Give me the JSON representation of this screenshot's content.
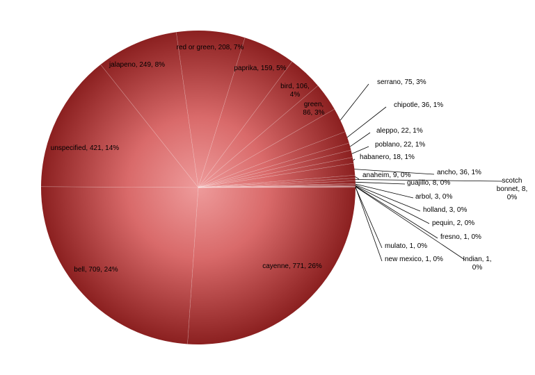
{
  "chart_data": {
    "type": "pie",
    "title": "",
    "series": [
      {
        "values": [
          {
            "label": "cayenne",
            "value": 771,
            "percent": "26%",
            "text": "cayenne, 771, 26%"
          },
          {
            "label": "bell",
            "value": 709,
            "percent": "24%",
            "text": "bell, 709, 24%"
          },
          {
            "label": "unspecified",
            "value": 421,
            "percent": "14%",
            "text": "unspecified, 421, 14%"
          },
          {
            "label": "jalapeno",
            "value": 249,
            "percent": "8%",
            "text": "jalapeno, 249, 8%"
          },
          {
            "label": "red or green",
            "value": 208,
            "percent": "7%",
            "text": "red or green, 208, 7%"
          },
          {
            "label": "paprika",
            "value": 159,
            "percent": "5%",
            "text": "paprika, 159, 5%"
          },
          {
            "label": "bird",
            "value": 106,
            "percent": "4%",
            "text": "bird, 106, 4%"
          },
          {
            "label": "green",
            "value": 86,
            "percent": "3%",
            "text": "green, 86, 3%"
          },
          {
            "label": "serrano",
            "value": 75,
            "percent": "3%",
            "text": "serrano, 75, 3%"
          },
          {
            "label": "chipotle",
            "value": 36,
            "percent": "1%",
            "text": "chipotle, 36, 1%"
          },
          {
            "label": "aleppo",
            "value": 22,
            "percent": "1%",
            "text": "aleppo, 22, 1%"
          },
          {
            "label": "poblano",
            "value": 22,
            "percent": "1%",
            "text": "poblano, 22, 1%"
          },
          {
            "label": "habanero",
            "value": 18,
            "percent": "1%",
            "text": "habanero, 18, 1%"
          },
          {
            "label": "ancho",
            "value": 36,
            "percent": "1%",
            "text": "ancho, 36, 1%"
          },
          {
            "label": "anaheim",
            "value": 9,
            "percent": "0%",
            "text": "anaheim, 9, 0%"
          },
          {
            "label": "scotch bonnet",
            "value": 8,
            "percent": "0%",
            "text": "scotch bonnet, 8, 0%"
          },
          {
            "label": "guajillo",
            "value": 8,
            "percent": "0%",
            "text": "guajillo, 8, 0%"
          },
          {
            "label": "arbol",
            "value": 3,
            "percent": "0%",
            "text": "arbol, 3, 0%"
          },
          {
            "label": "holland",
            "value": 3,
            "percent": "0%",
            "text": "holland, 3, 0%"
          },
          {
            "label": "pequin",
            "value": 2,
            "percent": "0%",
            "text": "pequin, 2, 0%"
          },
          {
            "label": "fresno",
            "value": 1,
            "percent": "0%",
            "text": "fresno, 1, 0%"
          },
          {
            "label": "Indian",
            "value": 1,
            "percent": "0%",
            "text": "Indian, 1, 0%"
          },
          {
            "label": "new mexico",
            "value": 1,
            "percent": "0%",
            "text": "new mexico, 1, 0%"
          },
          {
            "label": "mulato",
            "value": 1,
            "percent": "0%",
            "text": "mulato, 1, 0%"
          }
        ]
      }
    ],
    "start_angle_degrees": 0,
    "direction": "clockwise",
    "legend": "none",
    "colors": {
      "base": "#d96a6a",
      "dark": "#8b2020",
      "light": "#f1b5b5",
      "leader": "#000000"
    }
  }
}
